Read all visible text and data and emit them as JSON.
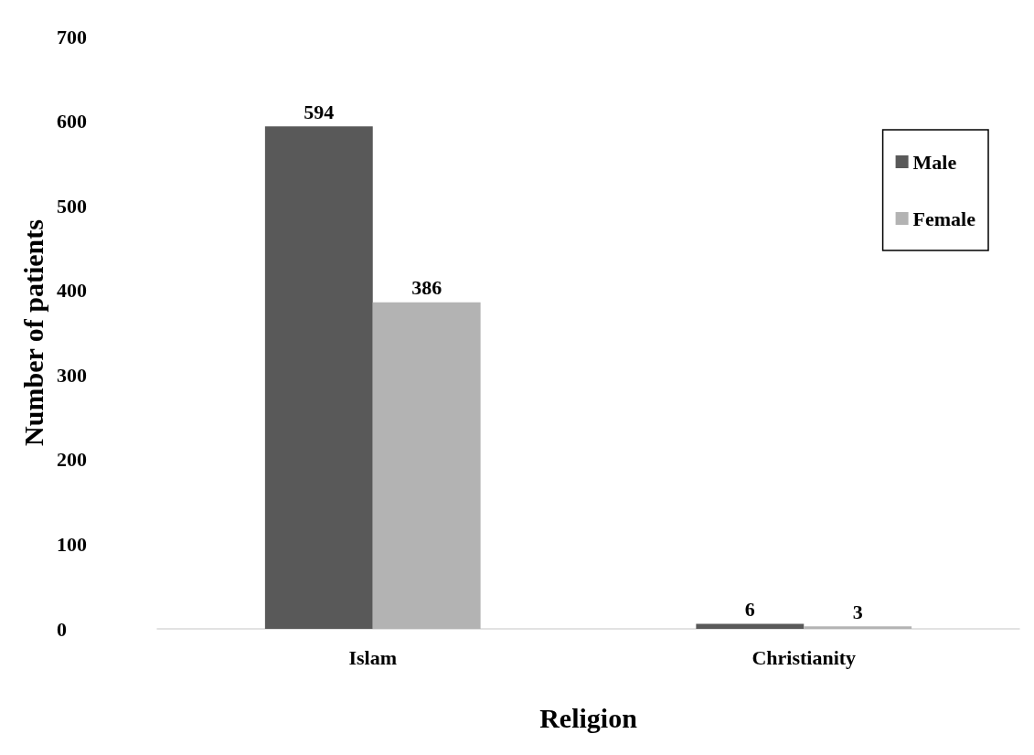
{
  "chart_data": {
    "type": "bar",
    "xlabel": "Religion",
    "ylabel": "Number of patients",
    "categories": [
      "Islam",
      "Christianity"
    ],
    "series": [
      {
        "name": "Male",
        "color": "#595959",
        "values": [
          594,
          6
        ]
      },
      {
        "name": "Female",
        "color": "#b3b3b3",
        "values": [
          386,
          3
        ]
      }
    ],
    "ylim": [
      0,
      700
    ],
    "yticks": [
      0,
      100,
      200,
      300,
      400,
      500,
      600,
      700
    ],
    "grid": false,
    "legend": "top right",
    "data_labels": true
  }
}
